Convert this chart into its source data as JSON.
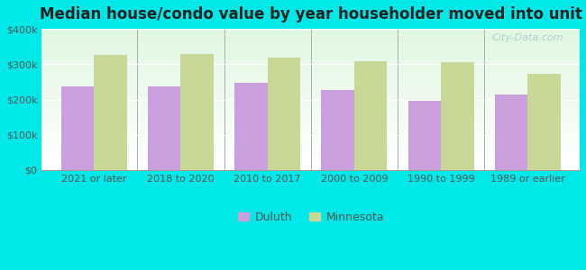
{
  "title": "Median house/condo value by year householder moved into unit",
  "categories": [
    "2021 or later",
    "2018 to 2020",
    "2010 to 2017",
    "2000 to 2009",
    "1990 to 1999",
    "1989 or earlier"
  ],
  "duluth_values": [
    238000,
    238000,
    248000,
    228000,
    197000,
    215000
  ],
  "minnesota_values": [
    325000,
    328000,
    318000,
    308000,
    305000,
    272000
  ],
  "duluth_color": "#c9a0dc",
  "minnesota_color": "#c8d896",
  "background_color": "#00e8e8",
  "plot_bg_color": "#e8f5e0",
  "ylabel": "",
  "xlabel": "",
  "ylim": [
    0,
    400000
  ],
  "yticks": [
    0,
    100000,
    200000,
    300000,
    400000
  ],
  "ytick_labels": [
    "$0",
    "$100k",
    "$200k",
    "$300k",
    "$400k"
  ],
  "legend_labels": [
    "Duluth",
    "Minnesota"
  ],
  "bar_width": 0.38,
  "title_fontsize": 12,
  "tick_fontsize": 8,
  "legend_fontsize": 9,
  "watermark": "City-Data.com"
}
